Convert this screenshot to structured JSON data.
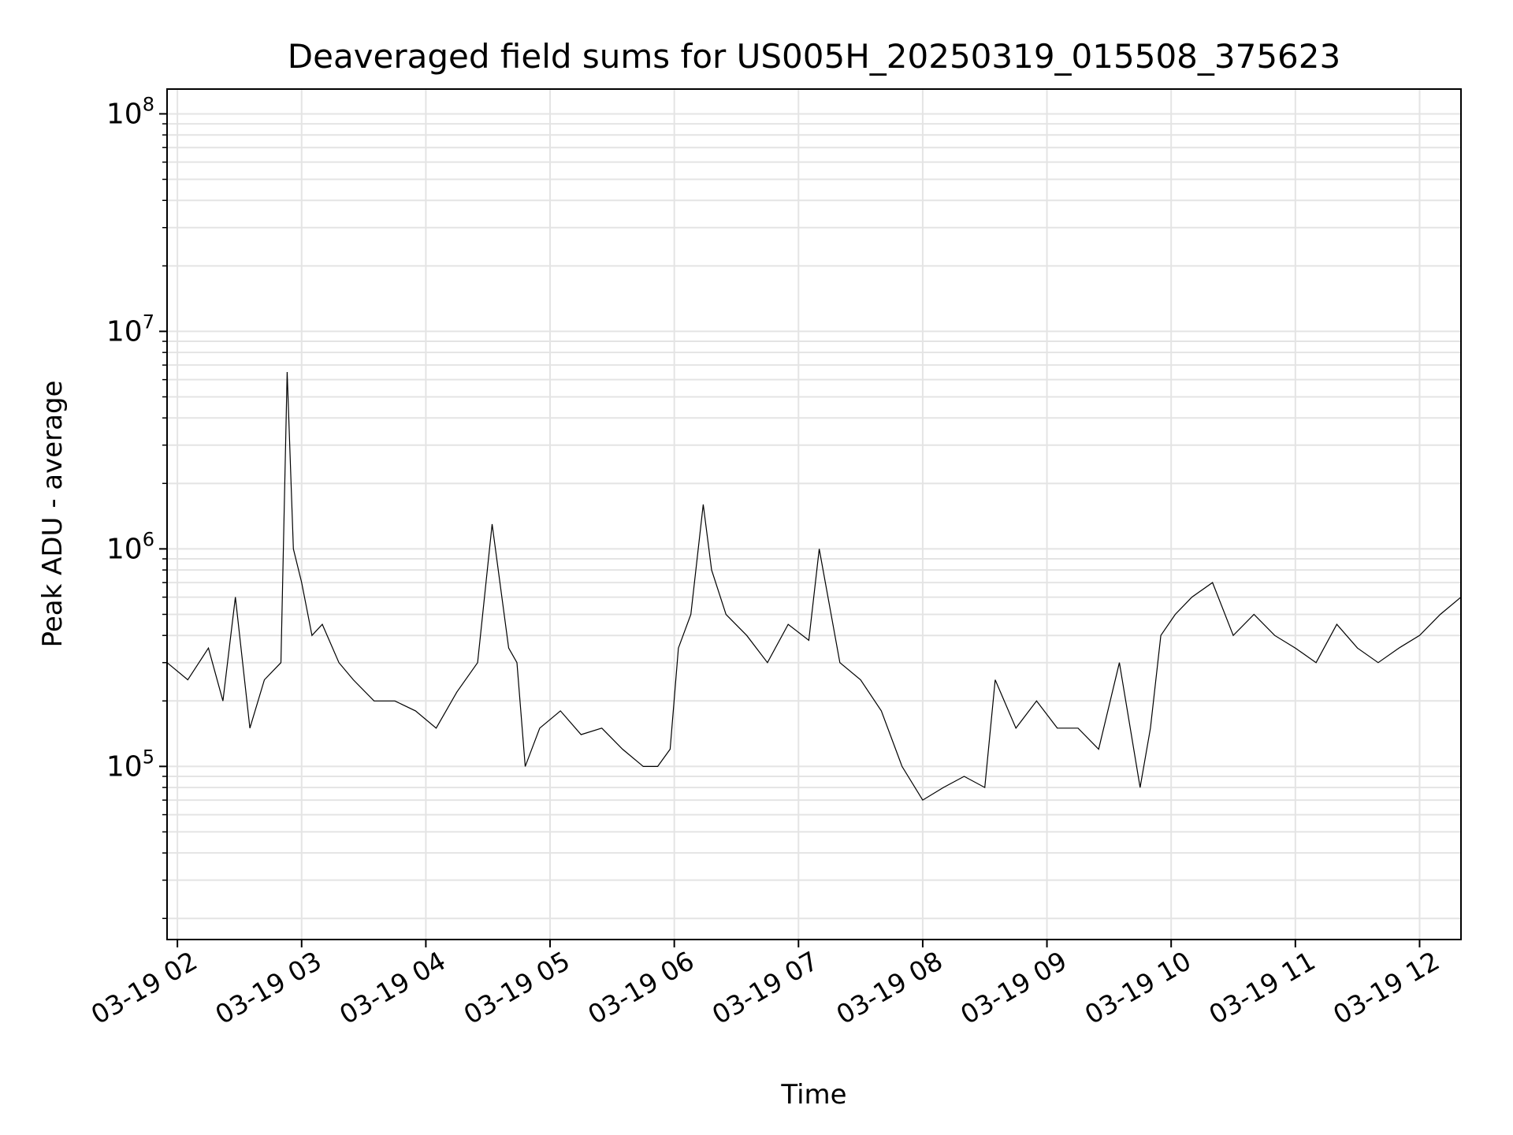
{
  "chart_data": {
    "type": "line",
    "title": "Deaveraged field sums for US005H_20250319_015508_375623",
    "xlabel": "Time",
    "ylabel": "Peak ADU - average",
    "yscale": "log",
    "grid": true,
    "line_color": "#000000",
    "grid_color": "#e4e4e4",
    "x_tick_labels": [
      "03-19 02",
      "03-19 03",
      "03-19 04",
      "03-19 05",
      "03-19 06",
      "03-19 07",
      "03-19 08",
      "03-19 09",
      "03-19 10",
      "03-19 11",
      "03-19 12"
    ],
    "y_tick_labels": [
      {
        "base": "10",
        "exp": "5"
      },
      {
        "base": "10",
        "exp": "6"
      },
      {
        "base": "10",
        "exp": "7"
      },
      {
        "base": "10",
        "exp": "8"
      }
    ],
    "xlim": [
      "2025-03-19 01:55",
      "2025-03-19 12:20"
    ],
    "ylim": [
      16000,
      130000000
    ],
    "series": [
      {
        "x": [
          "01:55",
          "02:05",
          "02:15",
          "02:22",
          "02:28",
          "02:35",
          "02:42",
          "02:50",
          "02:53",
          "02:56",
          "03:00",
          "03:05",
          "03:10",
          "03:18",
          "03:25",
          "03:35",
          "03:45",
          "03:55",
          "04:05",
          "04:15",
          "04:25",
          "04:32",
          "04:40",
          "04:44",
          "04:48",
          "04:55",
          "05:05",
          "05:15",
          "05:25",
          "05:35",
          "05:45",
          "05:52",
          "05:58",
          "06:02",
          "06:08",
          "06:14",
          "06:18",
          "06:25",
          "06:35",
          "06:45",
          "06:55",
          "07:05",
          "07:10",
          "07:20",
          "07:30",
          "07:40",
          "07:50",
          "08:00",
          "08:10",
          "08:20",
          "08:30",
          "08:35",
          "08:45",
          "08:55",
          "09:05",
          "09:15",
          "09:25",
          "09:35",
          "09:45",
          "09:50",
          "09:55",
          "10:02",
          "10:10",
          "10:20",
          "10:30",
          "10:40",
          "10:50",
          "11:00",
          "11:10",
          "11:20",
          "11:30",
          "11:40",
          "11:50",
          "12:00",
          "12:10",
          "12:20"
        ],
        "y": [
          300000,
          250000,
          350000,
          200000,
          600000,
          150000,
          250000,
          300000,
          6500000,
          1000000,
          700000,
          400000,
          450000,
          300000,
          250000,
          200000,
          200000,
          180000,
          150000,
          220000,
          300000,
          1300000,
          350000,
          300000,
          100000,
          150000,
          180000,
          140000,
          150000,
          120000,
          100000,
          100000,
          120000,
          350000,
          500000,
          1600000,
          800000,
          500000,
          400000,
          300000,
          450000,
          380000,
          1000000,
          300000,
          250000,
          180000,
          100000,
          70000,
          80000,
          90000,
          80000,
          250000,
          150000,
          200000,
          150000,
          150000,
          120000,
          300000,
          80000,
          150000,
          400000,
          500000,
          600000,
          700000,
          400000,
          500000,
          400000,
          350000,
          300000,
          450000,
          350000,
          300000,
          350000,
          400000,
          500000,
          600000
        ]
      }
    ]
  }
}
